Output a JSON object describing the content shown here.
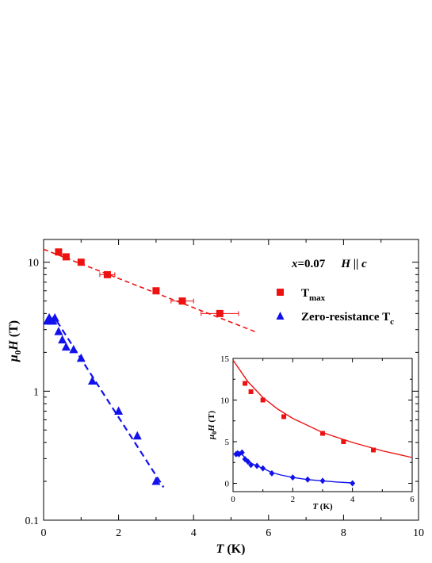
{
  "chart_data": [
    {
      "type": "scatter",
      "title": "",
      "xlabel_sym": "T",
      "xlabel_unit": " (K)",
      "ylabel_mu": "μ",
      "ylabel_sub": "0",
      "ylabel_sym": "H",
      "ylabel_unit": " (T)",
      "xlim": [
        0,
        10
      ],
      "ylim": [
        0.1,
        15
      ],
      "yscale": "log",
      "x_ticks": [
        0,
        2,
        4,
        6,
        8,
        10
      ],
      "y_ticks": [
        0.1,
        1,
        10
      ],
      "y_tick_labels": [
        "0.1",
        "1",
        "10"
      ],
      "annotation": {
        "x_sym": "x",
        "x_val": "=0.07",
        "h_sym": "H",
        "parallel": " || ",
        "c_sym": "c"
      },
      "legend_position": "top-right",
      "series": [
        {
          "name": "T",
          "name_sub": "max",
          "color": "#ee1111",
          "marker": "square",
          "points": [
            {
              "x": 0.4,
              "y": 12.0
            },
            {
              "x": 0.6,
              "y": 11.0
            },
            {
              "x": 1.0,
              "y": 10.0
            },
            {
              "x": 1.7,
              "y": 8.0,
              "xerr": 0.2
            },
            {
              "x": 3.0,
              "y": 6.0
            },
            {
              "x": 3.7,
              "y": 5.0,
              "xerr": 0.3
            },
            {
              "x": 4.7,
              "y": 4.0,
              "xerr": 0.5
            }
          ],
          "fit": {
            "style": "dashed",
            "x": [
              0,
              5.7
            ],
            "y": [
              12.6,
              2.85
            ]
          }
        },
        {
          "name": "Zero-resistance T",
          "name_sub": "c",
          "color": "#1111ee",
          "marker": "triangle",
          "points": [
            {
              "x": 0.1,
              "y": 3.5
            },
            {
              "x": 0.15,
              "y": 3.7
            },
            {
              "x": 0.2,
              "y": 3.5
            },
            {
              "x": 0.25,
              "y": 3.5
            },
            {
              "x": 0.3,
              "y": 3.7
            },
            {
              "x": 0.4,
              "y": 2.9
            },
            {
              "x": 0.5,
              "y": 2.5
            },
            {
              "x": 0.6,
              "y": 2.2
            },
            {
              "x": 0.8,
              "y": 2.1
            },
            {
              "x": 1.0,
              "y": 1.8
            },
            {
              "x": 1.3,
              "y": 1.2
            },
            {
              "x": 2.0,
              "y": 0.7
            },
            {
              "x": 2.5,
              "y": 0.45
            },
            {
              "x": 3.0,
              "y": 0.2
            }
          ],
          "fit": {
            "style": "dashed",
            "x": [
              0.35,
              3.2
            ],
            "y": [
              3.5,
              0.18
            ]
          }
        }
      ]
    },
    {
      "type": "scatter",
      "title": "",
      "xlabel_sym": "T",
      "xlabel_unit": " (K)",
      "ylabel_mu": "μ",
      "ylabel_sub": "0",
      "ylabel_sym": "H",
      "ylabel_unit": " (T)",
      "xlim": [
        0,
        6
      ],
      "ylim": [
        -1,
        15
      ],
      "x_ticks": [
        0,
        2,
        4,
        6
      ],
      "y_ticks": [
        0,
        5,
        10,
        15
      ],
      "series": [
        {
          "color": "#ee1111",
          "marker": "square",
          "points": [
            {
              "x": 0.4,
              "y": 12.0
            },
            {
              "x": 0.6,
              "y": 11.0
            },
            {
              "x": 1.0,
              "y": 10.0
            },
            {
              "x": 1.7,
              "y": 8.0
            },
            {
              "x": 3.0,
              "y": 6.0
            },
            {
              "x": 3.7,
              "y": 5.0
            },
            {
              "x": 4.7,
              "y": 4.0
            }
          ],
          "fit": {
            "style": "solid",
            "x": [
              0,
              0.5,
              1,
              1.5,
              2,
              3,
              4,
              5,
              6
            ],
            "y": [
              14.8,
              12.2,
              10.3,
              8.9,
              7.8,
              6.1,
              4.9,
              3.9,
              3.1
            ]
          }
        },
        {
          "color": "#1111ee",
          "marker": "diamond",
          "points": [
            {
              "x": 0.1,
              "y": 3.5
            },
            {
              "x": 0.15,
              "y": 3.6
            },
            {
              "x": 0.2,
              "y": 3.5
            },
            {
              "x": 0.3,
              "y": 3.7
            },
            {
              "x": 0.4,
              "y": 2.9
            },
            {
              "x": 0.5,
              "y": 2.6
            },
            {
              "x": 0.6,
              "y": 2.2
            },
            {
              "x": 0.8,
              "y": 2.1
            },
            {
              "x": 1.0,
              "y": 1.8
            },
            {
              "x": 1.3,
              "y": 1.2
            },
            {
              "x": 2.0,
              "y": 0.7
            },
            {
              "x": 2.5,
              "y": 0.45
            },
            {
              "x": 3.0,
              "y": 0.3
            },
            {
              "x": 4.0,
              "y": 0.0
            }
          ],
          "fit": {
            "style": "solid",
            "x": [
              0.3,
              0.5,
              0.8,
              1.0,
              1.3,
              1.6,
              2.0,
              2.5,
              3.0,
              3.5,
              4.0
            ],
            "y": [
              3.5,
              2.6,
              2.1,
              1.8,
              1.3,
              1.0,
              0.7,
              0.45,
              0.3,
              0.15,
              0.05
            ]
          }
        }
      ]
    }
  ]
}
